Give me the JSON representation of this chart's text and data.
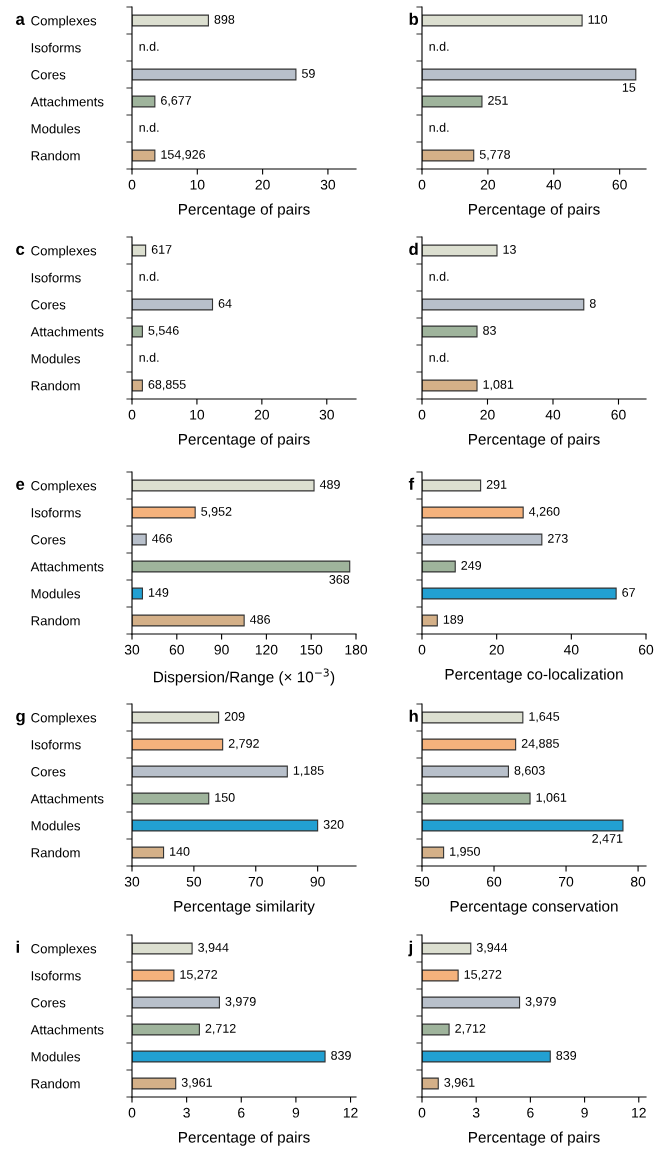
{
  "chart_data": [
    {
      "type": "bar",
      "orientation": "horizontal",
      "title": "a",
      "xlabel": "Percentage of pairs",
      "categories": [
        "Complexes",
        "Isoforms",
        "Cores",
        "Attachments",
        "Modules",
        "Random"
      ],
      "values": [
        11.7,
        null,
        25.1,
        3.5,
        null,
        3.5
      ],
      "colors": [
        "#dcdfd0",
        "#f5b27c",
        "#b8c0cb",
        "#9fb49c",
        "#22a0d2",
        "#d4b088"
      ],
      "xlim": [
        0,
        34.3
      ],
      "xticks": [
        0,
        10,
        20,
        30
      ],
      "annotations": [
        {
          "text": "898",
          "x": 11.7,
          "y": "Complexes"
        },
        "n.d.",
        {
          "text": "59",
          "x": 25.1,
          "y": "Cores"
        },
        {
          "text": "6,677",
          "x": 3.5,
          "y": "Attachments"
        },
        "n.d.",
        {
          "text": "154,926",
          "x": 3.5,
          "y": "Random"
        }
      ]
    },
    {
      "type": "bar",
      "orientation": "horizontal",
      "title": "b",
      "xlabel": "Percentage of pairs",
      "tick_labels": "x",
      "categories": [
        "Complexes",
        "Isoforms",
        "Cores",
        "Attachments",
        "Modules",
        "Random"
      ],
      "values": [
        48.6,
        null,
        64.9,
        18.2,
        null,
        15.7
      ],
      "colors": [
        "#dcdfd0",
        "#f5b27c",
        "#b8c0cb",
        "#9fb49c",
        "#22a0d2",
        "#d4b088"
      ],
      "xlim": [
        0,
        68
      ],
      "xticks": [
        0,
        20,
        40,
        60
      ],
      "annotations": [
        {
          "text": "110",
          "x": 48.6,
          "y": "Complexes"
        },
        "n.d.",
        {
          "text": "15",
          "x": 64.9,
          "y": "Cores"
        },
        {
          "text": "251",
          "x": 18.2,
          "y": "Attachments"
        },
        "n.d.",
        {
          "text": "5,778",
          "x": 15.7,
          "y": "Random"
        }
      ]
    },
    {
      "type": "bar",
      "orientation": "horizontal",
      "title": "c",
      "xlabel": "Percentage of pairs",
      "categories": [
        "Complexes",
        "Isoforms",
        "Cores",
        "Attachments",
        "Modules",
        "Random"
      ],
      "values": [
        2.1,
        null,
        12.4,
        1.6,
        null,
        1.6
      ],
      "colors": [
        "#dcdfd0",
        "#f5b27c",
        "#b8c0cb",
        "#9fb49c",
        "#22a0d2",
        "#d4b088"
      ],
      "xlim": [
        0,
        34.5
      ],
      "xticks": [
        0,
        10,
        20,
        30
      ],
      "annotations": [
        {
          "text": "617",
          "x": 2.1,
          "y": "Complexes"
        },
        "n.d.",
        {
          "text": "64",
          "x": 12.4,
          "y": "Cores"
        },
        {
          "text": "5,546",
          "x": 1.6,
          "y": "Attachments"
        },
        "n.d.",
        {
          "text": "68,855",
          "x": 1.6,
          "y": "Random"
        }
      ]
    },
    {
      "type": "bar",
      "orientation": "horizontal",
      "title": "d",
      "xlabel": "Percentage of pairs",
      "tick_labels": "x",
      "categories": [
        "Complexes",
        "Isoforms",
        "Cores",
        "Attachments",
        "Modules",
        "Random"
      ],
      "values": [
        22.9,
        null,
        49.4,
        16.8,
        null,
        16.8
      ],
      "colors": [
        "#dcdfd0",
        "#f5b27c",
        "#b8c0cb",
        "#9fb49c",
        "#22a0d2",
        "#d4b088"
      ],
      "xlim": [
        0,
        68.4
      ],
      "xticks": [
        0,
        20,
        40,
        60
      ],
      "annotations": [
        {
          "text": "13",
          "x": 22.9,
          "y": "Complexes"
        },
        "n.d.",
        {
          "text": "8",
          "x": 49.4,
          "y": "Cores"
        },
        {
          "text": "83",
          "x": 16.8,
          "y": "Attachments"
        },
        "n.d.",
        {
          "text": "1,081",
          "x": 16.8,
          "y": "Random"
        }
      ]
    },
    {
      "type": "bar",
      "orientation": "horizontal",
      "title": "e",
      "xlabel": "Dispersion/Range (× 10$^{−3}$)",
      "categories": [
        "Complexes",
        "Isoforms",
        "Cores",
        "Attachments",
        "Modules",
        "Random"
      ],
      "values": [
        151.9,
        72.3,
        39.5,
        175.8,
        37,
        105.1
      ],
      "colors": [
        "#dcdfd0",
        "#f5b27c",
        "#b8c0cb",
        "#9fb49c",
        "#22a0d2",
        "#d4b088"
      ],
      "xlim": [
        30,
        180
      ],
      "xticks": [
        30,
        60,
        90,
        120,
        150,
        180
      ],
      "annotations": [
        {
          "text": "489",
          "x": 151.9,
          "y": "Complexes"
        },
        {
          "text": "5,952",
          "x": 72.3,
          "y": "Isoforms"
        },
        {
          "text": "466",
          "x": 39.5,
          "y": "Cores"
        },
        {
          "text": "368",
          "x": 175.8,
          "y": "Attachments"
        },
        {
          "text": "149",
          "x": 37,
          "y": "Modules"
        },
        {
          "text": "486",
          "x": 105.1,
          "y": "Random"
        }
      ]
    },
    {
      "type": "bar",
      "orientation": "horizontal",
      "title": "f",
      "xlabel": "Percentage co-localization",
      "tick_labels": "x",
      "categories": [
        "Complexes",
        "Isoforms",
        "Cores",
        "Attachments",
        "Modules",
        "Random"
      ],
      "values": [
        15.7,
        27.1,
        32.1,
        8.9,
        52,
        4.1
      ],
      "colors": [
        "#dcdfd0",
        "#f5b27c",
        "#b8c0cb",
        "#9fb49c",
        "#22a0d2",
        "#d4b088"
      ],
      "xlim": [
        0,
        60
      ],
      "xticks": [
        0,
        20,
        40,
        60
      ],
      "annotations": [
        {
          "text": "291",
          "x": 15.7,
          "y": "Complexes"
        },
        {
          "text": "4,260",
          "x": 27.1,
          "y": "Isoforms"
        },
        {
          "text": "273",
          "x": 32.1,
          "y": "Cores"
        },
        {
          "text": "249",
          "x": 8.9,
          "y": "Attachments"
        },
        {
          "text": "67",
          "x": 52,
          "y": "Modules"
        },
        {
          "text": "189",
          "x": 4.1,
          "y": "Random"
        }
      ]
    },
    {
      "type": "bar",
      "orientation": "horizontal",
      "title": "g",
      "xlabel": "Percentage similarity",
      "categories": [
        "Complexes",
        "Isoforms",
        "Cores",
        "Attachments",
        "Modules",
        "Random"
      ],
      "values": [
        58,
        59.3,
        80.2,
        54.8,
        90,
        40.2
      ],
      "colors": [
        "#dcdfd0",
        "#f5b27c",
        "#b8c0cb",
        "#9fb49c",
        "#22a0d2",
        "#d4b088"
      ],
      "xlim": [
        30,
        102.4
      ],
      "xticks": [
        30,
        50,
        70,
        90
      ],
      "annotations": [
        {
          "text": "209",
          "x": 58,
          "y": "Complexes"
        },
        {
          "text": "2,792",
          "x": 59.3,
          "y": "Isoforms"
        },
        {
          "text": "1,185",
          "x": 80.2,
          "y": "Cores"
        },
        {
          "text": "150",
          "x": 54.8,
          "y": "Attachments"
        },
        {
          "text": "320",
          "x": 90,
          "y": "Modules"
        },
        {
          "text": "140",
          "x": 40.2,
          "y": "Random"
        }
      ]
    },
    {
      "type": "bar",
      "orientation": "horizontal",
      "title": "h",
      "xlabel": "Percentage conservation",
      "tick_labels": "x",
      "categories": [
        "Complexes",
        "Isoforms",
        "Cores",
        "Attachments",
        "Modules",
        "Random"
      ],
      "values": [
        64.0,
        63.0,
        62.0,
        65.0,
        77.9,
        53.0
      ],
      "colors": [
        "#dcdfd0",
        "#f5b27c",
        "#b8c0cb",
        "#9fb49c",
        "#22a0d2",
        "#d4b088"
      ],
      "xlim": [
        50,
        81.1
      ],
      "xticks": [
        50,
        60,
        70,
        80
      ],
      "annotations": [
        {
          "text": "1,645",
          "x": 64.0,
          "y": "Complexes"
        },
        {
          "text": "24,885",
          "x": 63.0,
          "y": "Isoforms"
        },
        {
          "text": "8,603",
          "x": 62.0,
          "y": "Cores"
        },
        {
          "text": "1,061",
          "x": 65.0,
          "y": "Attachments"
        },
        {
          "text": "2,471",
          "x": 77.9,
          "y": "Modules"
        },
        {
          "text": "1,950",
          "x": 53.0,
          "y": "Random"
        }
      ]
    },
    {
      "type": "bar",
      "orientation": "horizontal",
      "title": "i",
      "xlabel": "Percentage of pairs",
      "categories": [
        "Complexes",
        "Isoforms",
        "Cores",
        "Attachments",
        "Modules",
        "Random"
      ],
      "values": [
        3.3,
        2.3,
        4.8,
        3.7,
        10.6,
        2.4
      ],
      "colors": [
        "#dcdfd0",
        "#f5b27c",
        "#b8c0cb",
        "#9fb49c",
        "#22a0d2",
        "#d4b088"
      ],
      "xlim": [
        0,
        12.3
      ],
      "xticks": [
        0,
        3,
        6,
        9,
        12
      ],
      "annotations": [
        {
          "text": "3,944",
          "x": 3.3,
          "y": "Complexes"
        },
        {
          "text": "15,272",
          "x": 2.3,
          "y": "Isoforms"
        },
        {
          "text": "3,979",
          "x": 4.8,
          "y": "Cores"
        },
        {
          "text": "2,712",
          "x": 3.7,
          "y": "Attachments"
        },
        {
          "text": "839",
          "x": 10.6,
          "y": "Modules"
        },
        {
          "text": "3,961",
          "x": 2.4,
          "y": "Random"
        }
      ]
    },
    {
      "type": "bar",
      "orientation": "horizontal",
      "title": "j",
      "xlabel": "Percentage of pairs",
      "tick_labels": "x",
      "categories": [
        "Complexes",
        "Isoforms",
        "Cores",
        "Attachments",
        "Modules",
        "Random"
      ],
      "values": [
        2.7,
        2.0,
        5.4,
        1.5,
        7.1,
        0.9
      ],
      "colors": [
        "#dcdfd0",
        "#f5b27c",
        "#b8c0cb",
        "#9fb49c",
        "#22a0d2",
        "#d4b088"
      ],
      "xlim": [
        0,
        12.4
      ],
      "xticks": [
        0,
        3,
        6,
        9,
        12
      ],
      "annotations": [
        {
          "text": "3,944",
          "x": 2.7,
          "y": "Complexes"
        },
        {
          "text": "15,272",
          "x": 2.0,
          "y": "Isoforms"
        },
        {
          "text": "3,979",
          "x": 5.4,
          "y": "Cores"
        },
        {
          "text": "2,712",
          "x": 1.5,
          "y": "Attachments"
        },
        {
          "text": "839",
          "x": 7.1,
          "y": "Modules"
        },
        {
          "text": "3,961",
          "x": 0.9,
          "y": "Random"
        }
      ]
    }
  ]
}
